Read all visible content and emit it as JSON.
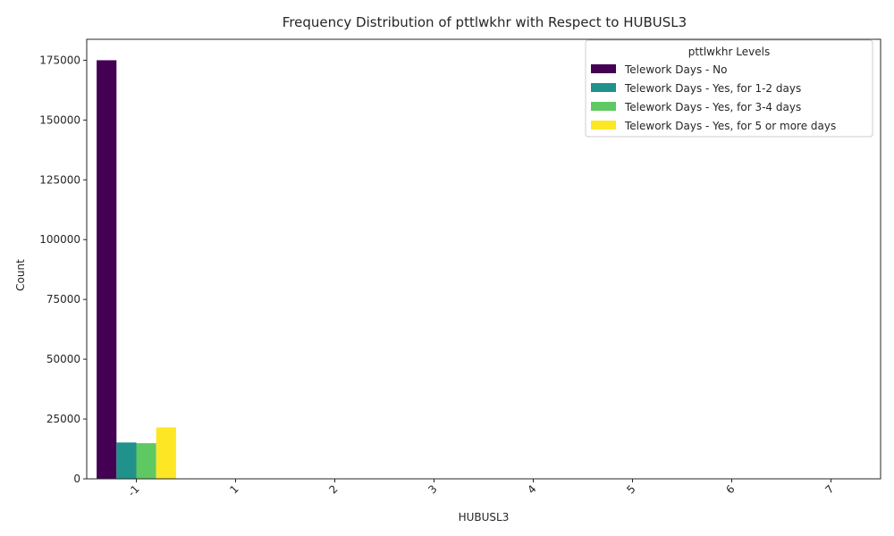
{
  "chart_data": {
    "type": "bar",
    "title": "Frequency Distribution of pttlwkhr with Respect to HUBUSL3",
    "xlabel": "HUBUSL3",
    "ylabel": "Count",
    "categories": [
      "-1",
      "1",
      "2",
      "3",
      "4",
      "5",
      "6",
      "7"
    ],
    "ylim": [
      0,
      183750
    ],
    "yticks": [
      0,
      25000,
      50000,
      75000,
      100000,
      125000,
      150000,
      175000
    ],
    "grid": false,
    "legend": {
      "title": "pttlwkhr Levels",
      "placement": "top-right"
    },
    "series": [
      {
        "name": "Telework Days - No",
        "color": "#440154",
        "values": [
          175000,
          0,
          0,
          0,
          0,
          0,
          0,
          0
        ]
      },
      {
        "name": "Telework Days - Yes, for 1-2 days",
        "color": "#21918c",
        "values": [
          15200,
          0,
          0,
          0,
          0,
          0,
          0,
          0
        ]
      },
      {
        "name": "Telework Days - Yes, for 3-4 days",
        "color": "#5ec962",
        "values": [
          14900,
          0,
          0,
          0,
          0,
          0,
          0,
          0
        ]
      },
      {
        "name": "Telework Days - Yes, for 5 or more days",
        "color": "#fde725",
        "values": [
          21500,
          0,
          0,
          0,
          0,
          0,
          0,
          0
        ]
      }
    ]
  }
}
